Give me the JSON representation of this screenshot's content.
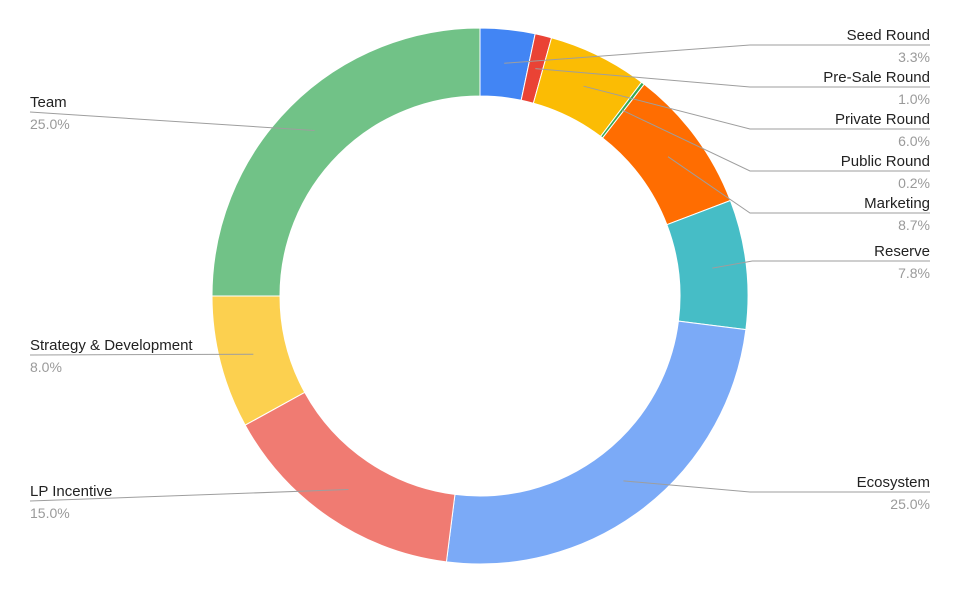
{
  "chart_data": {
    "type": "pie",
    "subtype": "donut",
    "title": "",
    "legend": "labels-outside-with-leader-lines",
    "slices": [
      {
        "label": "Seed Round",
        "value": 3.3,
        "display": "3.3%",
        "color": "#4285f4"
      },
      {
        "label": "Pre-Sale Round",
        "value": 1.0,
        "display": "1.0%",
        "color": "#ea4335"
      },
      {
        "label": "Private Round",
        "value": 6.0,
        "display": "6.0%",
        "color": "#fbbc04"
      },
      {
        "label": "Public Round",
        "value": 0.2,
        "display": "0.2%",
        "color": "#34a853"
      },
      {
        "label": "Marketing",
        "value": 8.7,
        "display": "8.7%",
        "color": "#ff6d01"
      },
      {
        "label": "Reserve",
        "value": 7.8,
        "display": "7.8%",
        "color": "#46bdc6"
      },
      {
        "label": "Ecosystem",
        "value": 25.0,
        "display": "25.0%",
        "color": "#7baaf7"
      },
      {
        "label": "LP Incentive",
        "value": 15.0,
        "display": "15.0%",
        "color": "#f07b72"
      },
      {
        "label": "Strategy & Development",
        "value": 8.0,
        "display": "8.0%",
        "color": "#fcd04f"
      },
      {
        "label": "Team",
        "value": 25.0,
        "display": "25.0%",
        "color": "#71c287"
      }
    ]
  }
}
